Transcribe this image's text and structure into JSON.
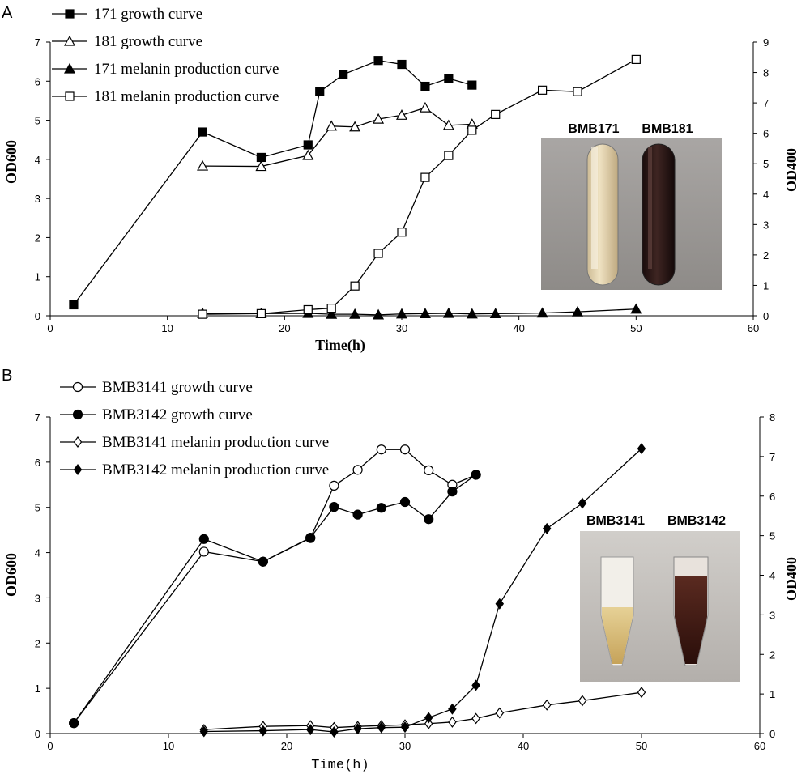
{
  "chart_data": [
    {
      "panel": "A",
      "type": "line",
      "xlabel": "Time(h)",
      "ylabel_left": "OD600",
      "ylabel_right": "OD400",
      "xlim": [
        0,
        60
      ],
      "xticks": [
        0,
        10,
        20,
        30,
        40,
        50,
        60
      ],
      "ylim_left": [
        0,
        7
      ],
      "yticks_left": [
        0,
        1,
        2,
        3,
        4,
        5,
        6,
        7
      ],
      "ylim_right": [
        0,
        9
      ],
      "yticks_right": [
        0,
        1,
        2,
        3,
        4,
        5,
        6,
        7,
        8,
        9
      ],
      "grid": false,
      "legend_position": "top-left",
      "photo_labels": [
        "BMB171",
        "BMB181"
      ],
      "series": [
        {
          "name": "171 growth curve",
          "axis": "left",
          "marker": "square-filled",
          "x": [
            2,
            13,
            18,
            22,
            23,
            25,
            28,
            30,
            32,
            34,
            36
          ],
          "y": [
            0.28,
            4.7,
            4.05,
            4.37,
            5.73,
            6.17,
            6.53,
            6.43,
            5.87,
            6.07,
            5.9
          ]
        },
        {
          "name": "181 growth curve",
          "axis": "left",
          "marker": "triangle-open",
          "x": [
            13,
            18,
            22,
            24,
            26,
            28,
            30,
            32,
            34,
            36
          ],
          "y": [
            3.83,
            3.82,
            4.1,
            4.85,
            4.83,
            5.03,
            5.13,
            5.32,
            4.87,
            4.9
          ]
        },
        {
          "name": "171 melanin production curve",
          "axis": "right",
          "marker": "triangle-filled",
          "x": [
            13,
            18,
            22,
            24,
            26,
            28,
            30,
            32,
            34,
            36,
            38,
            42,
            45,
            50
          ],
          "y": [
            0.08,
            0.07,
            0.08,
            0.05,
            0.05,
            0.03,
            0.06,
            0.07,
            0.08,
            0.06,
            0.07,
            0.09,
            0.13,
            0.22
          ]
        },
        {
          "name": "181 melanin production curve",
          "axis": "right",
          "marker": "square-open",
          "x": [
            13,
            18,
            22,
            24,
            26,
            28,
            30,
            32,
            34,
            36,
            38,
            42,
            45,
            50
          ],
          "y": [
            0.05,
            0.07,
            0.2,
            0.25,
            0.98,
            2.05,
            2.75,
            4.55,
            5.27,
            6.1,
            6.62,
            7.42,
            7.37,
            8.43
          ]
        }
      ]
    },
    {
      "panel": "B",
      "type": "line",
      "xlabel": "Time(h)",
      "ylabel_left": "OD600",
      "ylabel_right": "OD400",
      "xlim": [
        0,
        60
      ],
      "xticks": [
        0,
        10,
        20,
        30,
        40,
        50,
        60
      ],
      "ylim_left": [
        0,
        7
      ],
      "yticks_left": [
        0,
        1,
        2,
        3,
        4,
        5,
        6,
        7
      ],
      "ylim_right": [
        0,
        8
      ],
      "yticks_right": [
        0,
        1,
        2,
        3,
        4,
        5,
        6,
        7,
        8
      ],
      "grid": false,
      "legend_position": "top-left",
      "photo_labels": [
        "BMB3141",
        "BMB3142"
      ],
      "series": [
        {
          "name": "BMB3141 growth curve",
          "axis": "left",
          "marker": "circle-open",
          "x": [
            2,
            13,
            18,
            22,
            24,
            26,
            28,
            30,
            32,
            34,
            36
          ],
          "y": [
            0.23,
            4.02,
            3.8,
            4.32,
            5.48,
            5.83,
            6.28,
            6.28,
            5.82,
            5.5,
            5.72
          ]
        },
        {
          "name": "BMB3142 growth curve",
          "axis": "left",
          "marker": "circle-filled",
          "x": [
            2,
            13,
            18,
            22,
            24,
            26,
            28,
            30,
            32,
            34,
            36
          ],
          "y": [
            0.23,
            4.3,
            3.8,
            4.33,
            5.01,
            4.84,
            4.99,
            5.12,
            4.74,
            5.35,
            5.72
          ]
        },
        {
          "name": "BMB3141 melanin production curve",
          "axis": "right",
          "marker": "diamond-open",
          "x": [
            13,
            18,
            22,
            24,
            26,
            28,
            30,
            32,
            34,
            36,
            38,
            42,
            45,
            50
          ],
          "y": [
            0.1,
            0.18,
            0.2,
            0.15,
            0.18,
            0.2,
            0.22,
            0.25,
            0.29,
            0.38,
            0.52,
            0.72,
            0.83,
            1.04
          ]
        },
        {
          "name": "BMB3142 melanin production curve",
          "axis": "right",
          "marker": "diamond-filled",
          "x": [
            13,
            18,
            22,
            24,
            26,
            28,
            30,
            32,
            34,
            36,
            38,
            42,
            45,
            50
          ],
          "y": [
            0.05,
            0.07,
            0.1,
            0.04,
            0.12,
            0.15,
            0.16,
            0.4,
            0.62,
            1.22,
            3.28,
            5.18,
            5.82,
            7.2
          ]
        }
      ]
    }
  ]
}
